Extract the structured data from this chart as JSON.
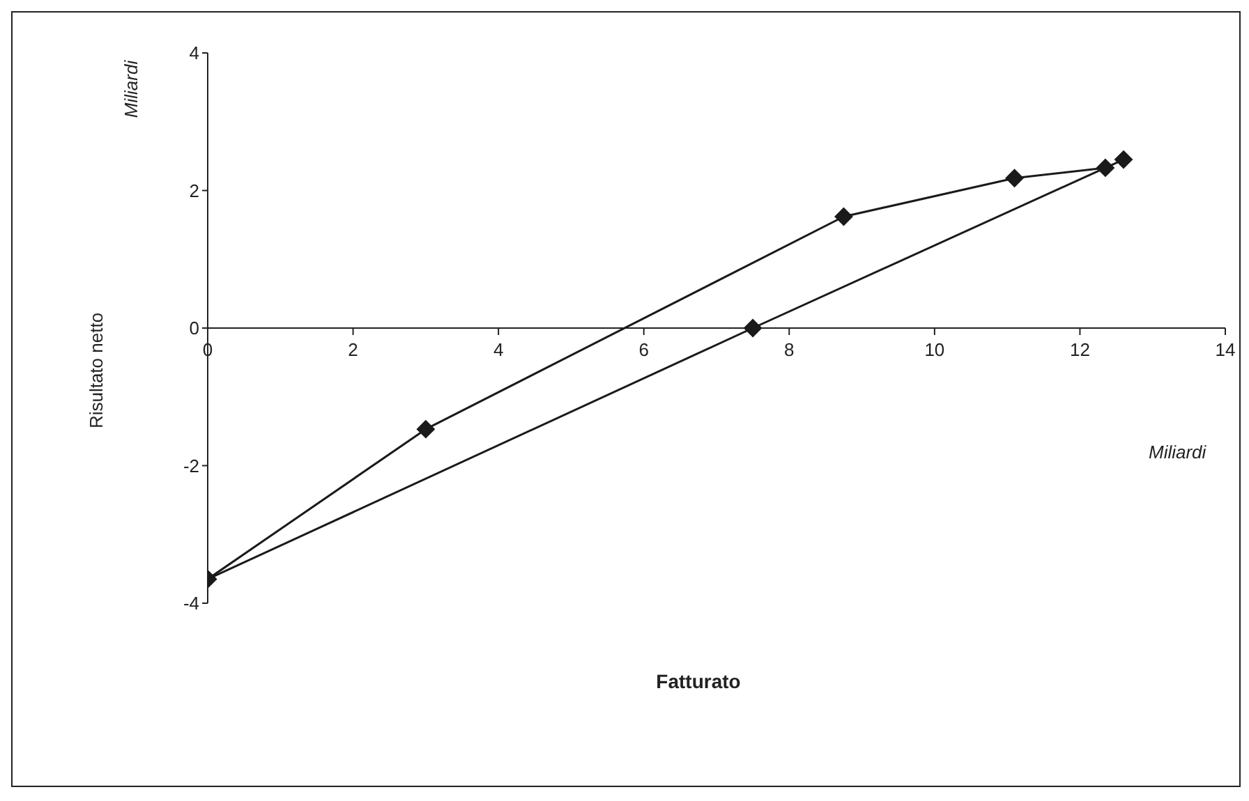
{
  "chart_data": {
    "type": "line",
    "xlabel": "Fatturato",
    "ylabel": "Risultato netto",
    "annotations": [
      "Miliardi",
      "Miliardi"
    ],
    "xlim": [
      0,
      14
    ],
    "xticks": [
      0,
      2,
      4,
      6,
      8,
      10,
      12,
      14
    ],
    "ylim": [
      -4,
      4
    ],
    "yticks": [
      -4,
      -2,
      0,
      2,
      4
    ],
    "marker": "diamond",
    "series": [
      {
        "color": "#1a1a1a",
        "x": [
          0,
          3,
          8.75,
          11.1,
          12.35
        ],
        "values": [
          -3.65,
          -1.47,
          1.62,
          2.18,
          2.33
        ]
      },
      {
        "color": "#1a1a1a",
        "x": [
          0,
          7.5,
          12.6
        ],
        "values": [
          -3.65,
          0,
          2.45
        ]
      }
    ]
  }
}
